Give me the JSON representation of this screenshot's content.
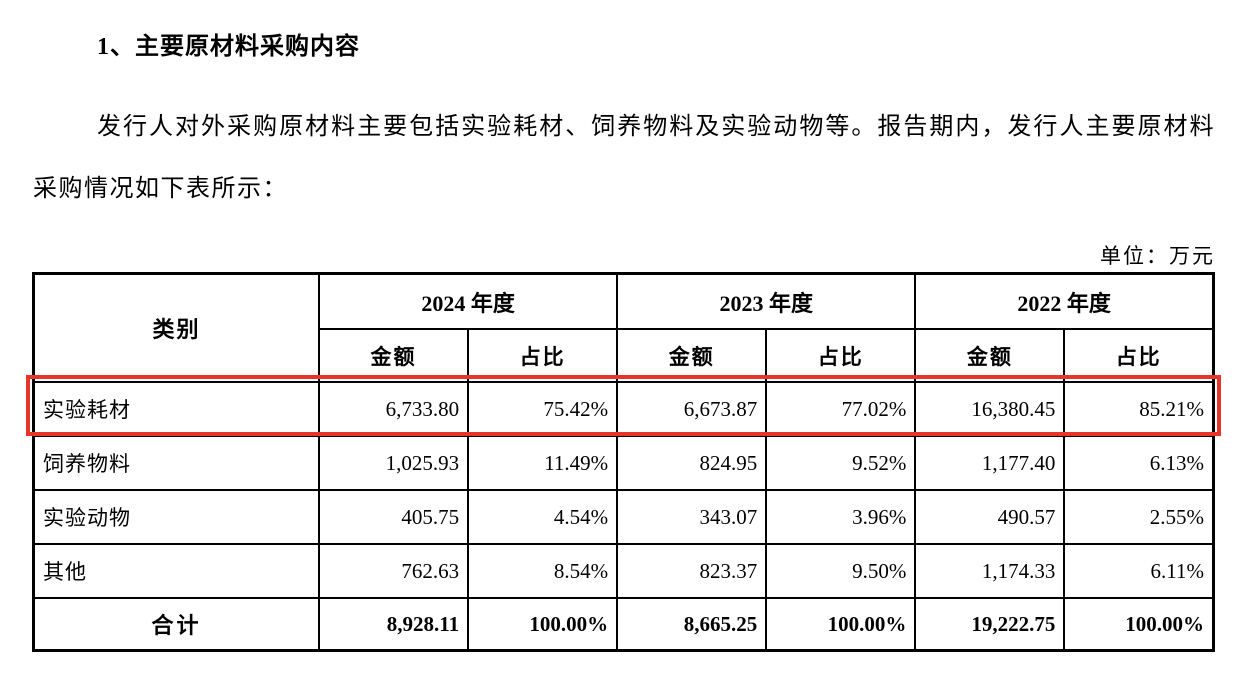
{
  "page": {
    "heading": "1、主要原材料采购内容",
    "paragraph": "发行人对外采购原材料主要包括实验耗材、饲养物料及实验动物等。报告期内，发行人主要原材料采购情况如下表所示：",
    "unit_label": "单位：万元"
  },
  "highlight": {
    "color": "#e8352b",
    "target_row": "实验耗材"
  },
  "table": {
    "category_header": "类别",
    "year_groups": [
      {
        "label": "2024 年度",
        "amount_header": "金额",
        "ratio_header": "占比"
      },
      {
        "label": "2023 年度",
        "amount_header": "金额",
        "ratio_header": "占比"
      },
      {
        "label": "2022 年度",
        "amount_header": "金额",
        "ratio_header": "占比"
      }
    ],
    "rows": [
      {
        "category": "实验耗材",
        "values": [
          "6,733.80",
          "75.42%",
          "6,673.87",
          "77.02%",
          "16,380.45",
          "85.21%"
        ],
        "highlighted": true
      },
      {
        "category": "饲养物料",
        "values": [
          "1,025.93",
          "11.49%",
          "824.95",
          "9.52%",
          "1,177.40",
          "6.13%"
        ],
        "highlighted": false
      },
      {
        "category": "实验动物",
        "values": [
          "405.75",
          "4.54%",
          "343.07",
          "3.96%",
          "490.57",
          "2.55%"
        ],
        "highlighted": false
      },
      {
        "category": "其他",
        "values": [
          "762.63",
          "8.54%",
          "823.37",
          "9.50%",
          "1,174.33",
          "6.11%"
        ],
        "highlighted": false
      }
    ],
    "total_row": {
      "category": "合计",
      "values": [
        "8,928.11",
        "100.00%",
        "8,665.25",
        "100.00%",
        "19,222.75",
        "100.00%"
      ]
    }
  }
}
